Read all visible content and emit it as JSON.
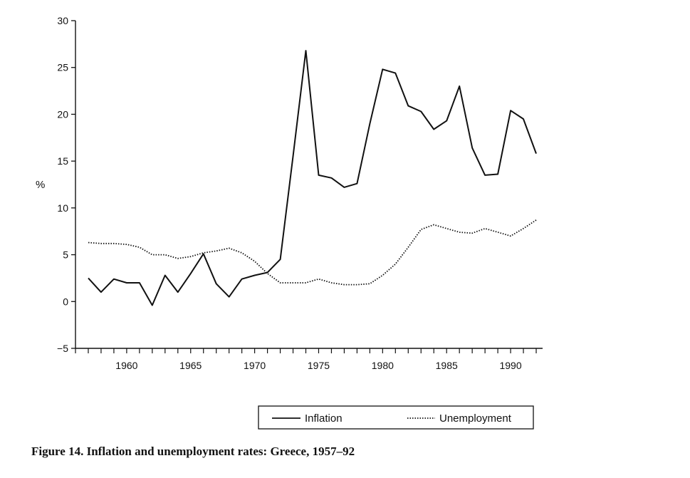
{
  "caption": "Figure 14. Inflation and unemployment rates: Greece, 1957–92",
  "chart_data": {
    "type": "line",
    "title": "",
    "xlabel": "",
    "ylabel": "%",
    "xlim": [
      1956,
      1992.5
    ],
    "ylim": [
      -5,
      30
    ],
    "x_ticks": [
      1960,
      1965,
      1970,
      1975,
      1980,
      1985,
      1990
    ],
    "x_tick_labels": [
      "1960",
      "1965",
      "1970",
      "1975",
      "1980",
      "1985",
      "1990"
    ],
    "y_ticks": [
      -5,
      0,
      5,
      10,
      15,
      20,
      25,
      30
    ],
    "y_tick_labels": [
      "−5",
      "0",
      "5",
      "10",
      "15",
      "20",
      "25",
      "30"
    ],
    "legend_position": "bottom",
    "series": [
      {
        "name": "Inflation",
        "style": "solid",
        "color": "#111111",
        "x": [
          1957,
          1958,
          1959,
          1960,
          1961,
          1962,
          1963,
          1964,
          1965,
          1966,
          1967,
          1968,
          1969,
          1970,
          1971,
          1972,
          1973,
          1974,
          1975,
          1976,
          1977,
          1978,
          1979,
          1980,
          1981,
          1982,
          1983,
          1984,
          1985,
          1986,
          1987,
          1988,
          1989,
          1990,
          1991,
          1992
        ],
        "values": [
          2.5,
          1.0,
          2.4,
          2.0,
          2.0,
          -0.4,
          2.8,
          1.0,
          3.0,
          5.1,
          1.9,
          0.5,
          2.4,
          2.8,
          3.1,
          4.5,
          15.5,
          26.8,
          13.5,
          13.2,
          12.2,
          12.6,
          19.0,
          24.8,
          24.4,
          20.9,
          20.3,
          18.4,
          19.3,
          23.0,
          16.4,
          13.5,
          13.6,
          20.4,
          19.5,
          15.8
        ]
      },
      {
        "name": "Unemployment",
        "style": "dotted",
        "color": "#111111",
        "x": [
          1957,
          1958,
          1959,
          1960,
          1961,
          1962,
          1963,
          1964,
          1965,
          1966,
          1967,
          1968,
          1969,
          1970,
          1971,
          1972,
          1973,
          1974,
          1975,
          1976,
          1977,
          1978,
          1979,
          1980,
          1981,
          1982,
          1983,
          1984,
          1985,
          1986,
          1987,
          1988,
          1989,
          1990,
          1991,
          1992
        ],
        "values": [
          6.3,
          6.2,
          6.2,
          6.1,
          5.8,
          5.0,
          5.0,
          4.6,
          4.8,
          5.2,
          5.4,
          5.7,
          5.2,
          4.3,
          3.0,
          2.0,
          2.0,
          2.0,
          2.4,
          2.0,
          1.8,
          1.8,
          1.9,
          2.8,
          4.0,
          5.8,
          7.7,
          8.2,
          7.8,
          7.4,
          7.3,
          7.8,
          7.4,
          7.0,
          7.8,
          8.7
        ]
      }
    ]
  }
}
